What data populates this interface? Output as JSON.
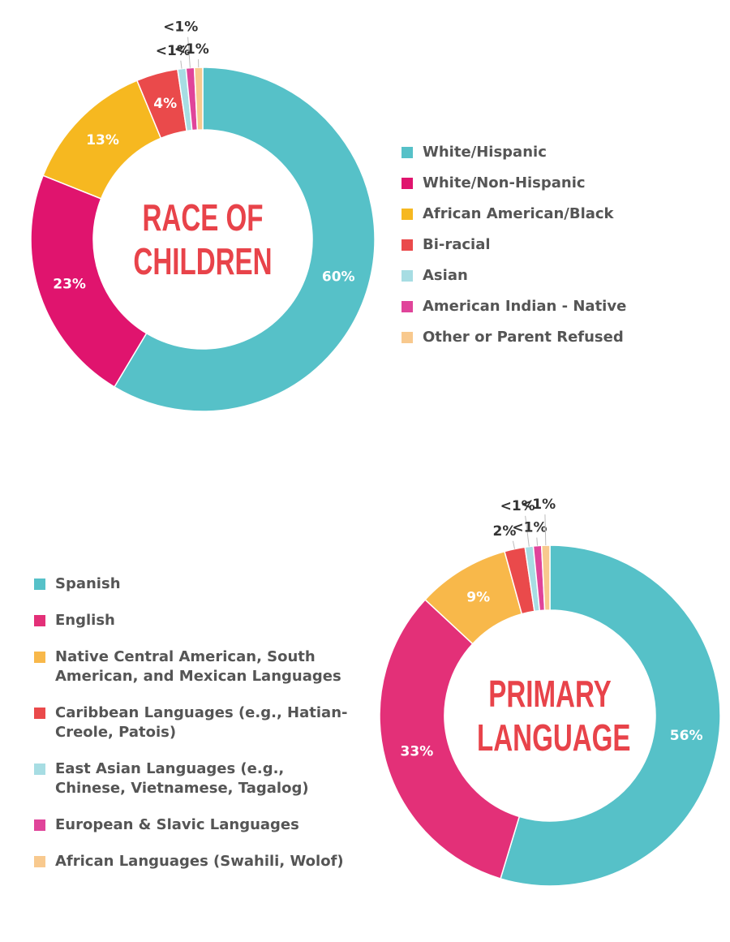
{
  "chart_data": [
    {
      "type": "pie",
      "title": "RACE OF CHILDREN",
      "categories": [
        "White/Hispanic",
        "White/Non-Hispanic",
        "African American/Black",
        "Bi-racial",
        "Asian",
        "American Indian - Native",
        "Other or Parent Refused"
      ],
      "values": [
        60,
        23,
        13,
        4,
        0.8,
        0.8,
        0.8
      ],
      "value_labels": [
        "60%",
        "23%",
        "13%",
        "4%",
        "<1%",
        "<1%",
        "<1%"
      ],
      "colors": [
        "#56c1c8",
        "#e0146e",
        "#f6b820",
        "#ea4a4b",
        "#a7dde3",
        "#e0449a",
        "#f8c98e"
      ]
    },
    {
      "type": "pie",
      "title": "PRIMARY LANGUAGE",
      "categories": [
        "Spanish",
        "English",
        "Native Central American, South American, and Mexican Languages",
        "Caribbean Languages (e.g., Hatian-Creole, Patois)",
        "East Asian Languages (e.g., Chinese, Vietnamese, Tagalog)",
        "European & Slavic Languages",
        "African Languages (Swahili, Wolof)"
      ],
      "values": [
        56,
        33,
        9,
        2,
        0.8,
        0.8,
        0.8
      ],
      "value_labels": [
        "56%",
        "33%",
        "9%",
        "2%",
        "<1%",
        "<1%",
        "<1%"
      ],
      "colors": [
        "#56c1c8",
        "#e33078",
        "#f8b84a",
        "#ea4a4b",
        "#a7dde3",
        "#e0449a",
        "#f8c98e"
      ]
    }
  ]
}
